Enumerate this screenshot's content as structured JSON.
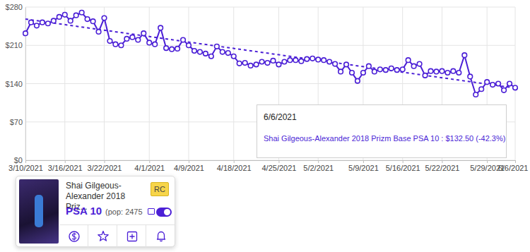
{
  "chart_data": {
    "type": "line",
    "categories": [
      "3/10/2021",
      null,
      null,
      null,
      null,
      null,
      null,
      "3/16/2021",
      null,
      null,
      null,
      null,
      null,
      null,
      "3/22/2021",
      null,
      null,
      null,
      null,
      null,
      null,
      null,
      "4/1/2021",
      null,
      null,
      null,
      null,
      null,
      null,
      "4/9/2021",
      null,
      null,
      null,
      null,
      null,
      null,
      null,
      "4/18/2021",
      null,
      null,
      null,
      null,
      null,
      null,
      null,
      "4/25/2021",
      null,
      null,
      null,
      null,
      null,
      null,
      "5/2/2021",
      null,
      null,
      null,
      null,
      null,
      null,
      null,
      "5/9/2021",
      null,
      null,
      null,
      null,
      null,
      null,
      "5/16/2021",
      null,
      null,
      null,
      null,
      null,
      null,
      "5/22/2021",
      null,
      null,
      null,
      null,
      null,
      null,
      null,
      "5/29/2021",
      null,
      null,
      null,
      null,
      "6/6/2021"
    ],
    "series": [
      {
        "color": "#4b1fd6",
        "marker": "circle",
        "line_style": "solid",
        "values": [
          232,
          252,
          246,
          252,
          250,
          255,
          262,
          266,
          255,
          265,
          270,
          258,
          254,
          235,
          260,
          218,
          212,
          210,
          222,
          225,
          220,
          232,
          215,
          212,
          242,
          205,
          203,
          204,
          220,
          210,
          200,
          198,
          195,
          190,
          208,
          198,
          196,
          190,
          177,
          178,
          173,
          175,
          180,
          178,
          182,
          175,
          180,
          183,
          183,
          181,
          185,
          186,
          184,
          183,
          180,
          176,
          162,
          175,
          160,
          145,
          160,
          172,
          162,
          166,
          165,
          168,
          165,
          166,
          183,
          172,
          176,
          155,
          163,
          162,
          163,
          160,
          163,
          160,
          192,
          153,
          120,
          130,
          143,
          138,
          140,
          128,
          140,
          132.5
        ]
      }
    ],
    "trend": {
      "values": [
        258,
        132
      ],
      "color": "#4b1fd6",
      "line_style": "dotted"
    },
    "ylim": [
      0,
      280
    ],
    "yticks": [
      {
        "value": 0,
        "label": "$0"
      },
      {
        "value": 70,
        "label": "$70"
      },
      {
        "value": 140,
        "label": "$140"
      },
      {
        "value": 210,
        "label": "$210"
      },
      {
        "value": 280,
        "label": "$280"
      }
    ],
    "grid": true,
    "annotations": [
      {
        "heading": "6/6/2021",
        "text": "Shai Gilgeous-Alexander 2018 Prizm Base PSA 10 : $132.50 (-42.3%)"
      }
    ]
  },
  "card": {
    "title": "Shai Gilgeous-Alexander 2018 Priz...",
    "badge": "RC",
    "grade": "PSA 10",
    "population": "(pop: 2475"
  }
}
